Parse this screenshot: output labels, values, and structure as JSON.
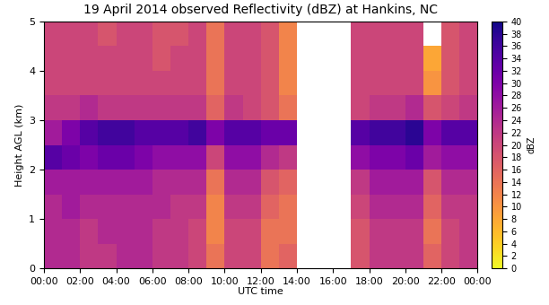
{
  "chart_data": {
    "type": "heatmap",
    "title": "19 April 2014 observed Reflectivity (dBZ) at Hankins, NC",
    "xlabel": "UTC time",
    "ylabel": "Height AGL (km)",
    "x": [
      0,
      1,
      2,
      3,
      4,
      5,
      6,
      7,
      8,
      9,
      10,
      11,
      12,
      13,
      14,
      15,
      16,
      17,
      18,
      19,
      20,
      21,
      22,
      23,
      24
    ],
    "y": [
      0,
      0.5,
      1,
      1.5,
      2,
      2.5,
      3,
      3.5,
      4,
      4.5,
      5
    ],
    "values": [
      [
        24,
        24,
        22,
        22,
        24,
        24,
        22,
        22,
        20,
        14,
        20,
        20,
        14,
        16,
        null,
        null,
        null,
        18,
        22,
        22,
        22,
        16,
        20,
        22
      ],
      [
        24,
        24,
        22,
        24,
        24,
        24,
        22,
        22,
        20,
        12,
        20,
        20,
        14,
        14,
        null,
        null,
        null,
        18,
        22,
        22,
        22,
        14,
        20,
        22
      ],
      [
        24,
        26,
        24,
        24,
        24,
        24,
        24,
        22,
        22,
        12,
        22,
        22,
        16,
        14,
        null,
        null,
        null,
        20,
        24,
        24,
        24,
        16,
        22,
        22
      ],
      [
        26,
        26,
        26,
        26,
        26,
        26,
        24,
        24,
        24,
        14,
        24,
        24,
        18,
        16,
        null,
        null,
        null,
        22,
        26,
        26,
        26,
        18,
        24,
        24
      ],
      [
        34,
        32,
        30,
        32,
        32,
        30,
        28,
        28,
        28,
        20,
        28,
        28,
        24,
        22,
        null,
        null,
        null,
        28,
        30,
        30,
        32,
        26,
        28,
        28
      ],
      [
        26,
        30,
        34,
        36,
        36,
        34,
        34,
        34,
        36,
        30,
        34,
        34,
        32,
        32,
        null,
        null,
        null,
        34,
        36,
        36,
        38,
        30,
        34,
        34
      ],
      [
        22,
        22,
        24,
        22,
        22,
        22,
        22,
        22,
        22,
        16,
        22,
        20,
        18,
        14,
        null,
        null,
        null,
        20,
        22,
        22,
        24,
        18,
        20,
        22
      ],
      [
        20,
        20,
        20,
        20,
        20,
        20,
        20,
        20,
        20,
        14,
        20,
        20,
        18,
        12,
        null,
        null,
        null,
        20,
        20,
        20,
        20,
        10,
        18,
        20
      ],
      [
        20,
        20,
        20,
        20,
        20,
        20,
        18,
        20,
        20,
        14,
        20,
        20,
        18,
        12,
        null,
        null,
        null,
        20,
        20,
        20,
        20,
        8,
        18,
        20
      ],
      [
        20,
        20,
        20,
        18,
        20,
        20,
        18,
        18,
        20,
        14,
        20,
        20,
        18,
        12,
        null,
        null,
        null,
        20,
        20,
        20,
        20,
        null,
        18,
        20
      ]
    ],
    "xlim": [
      0,
      24
    ],
    "xticks": [
      {
        "value": 0,
        "label": "00:00"
      },
      {
        "value": 2,
        "label": "02:00"
      },
      {
        "value": 4,
        "label": "04:00"
      },
      {
        "value": 6,
        "label": "06:00"
      },
      {
        "value": 8,
        "label": "08:00"
      },
      {
        "value": 10,
        "label": "10:00"
      },
      {
        "value": 12,
        "label": "12:00"
      },
      {
        "value": 14,
        "label": "14:00"
      },
      {
        "value": 16,
        "label": "16:00"
      },
      {
        "value": 18,
        "label": "18:00"
      },
      {
        "value": 20,
        "label": "20:00"
      },
      {
        "value": 22,
        "label": "22:00"
      },
      {
        "value": 24,
        "label": "00:00"
      }
    ],
    "ylim": [
      0,
      5
    ],
    "yticks": [
      0,
      1,
      2,
      3,
      4,
      5
    ],
    "colorbar": {
      "label": "dBZ",
      "range": [
        0,
        40
      ],
      "ticks": [
        0,
        2,
        4,
        6,
        8,
        10,
        12,
        14,
        16,
        18,
        20,
        22,
        24,
        26,
        28,
        30,
        32,
        34,
        36,
        38,
        40
      ]
    }
  }
}
